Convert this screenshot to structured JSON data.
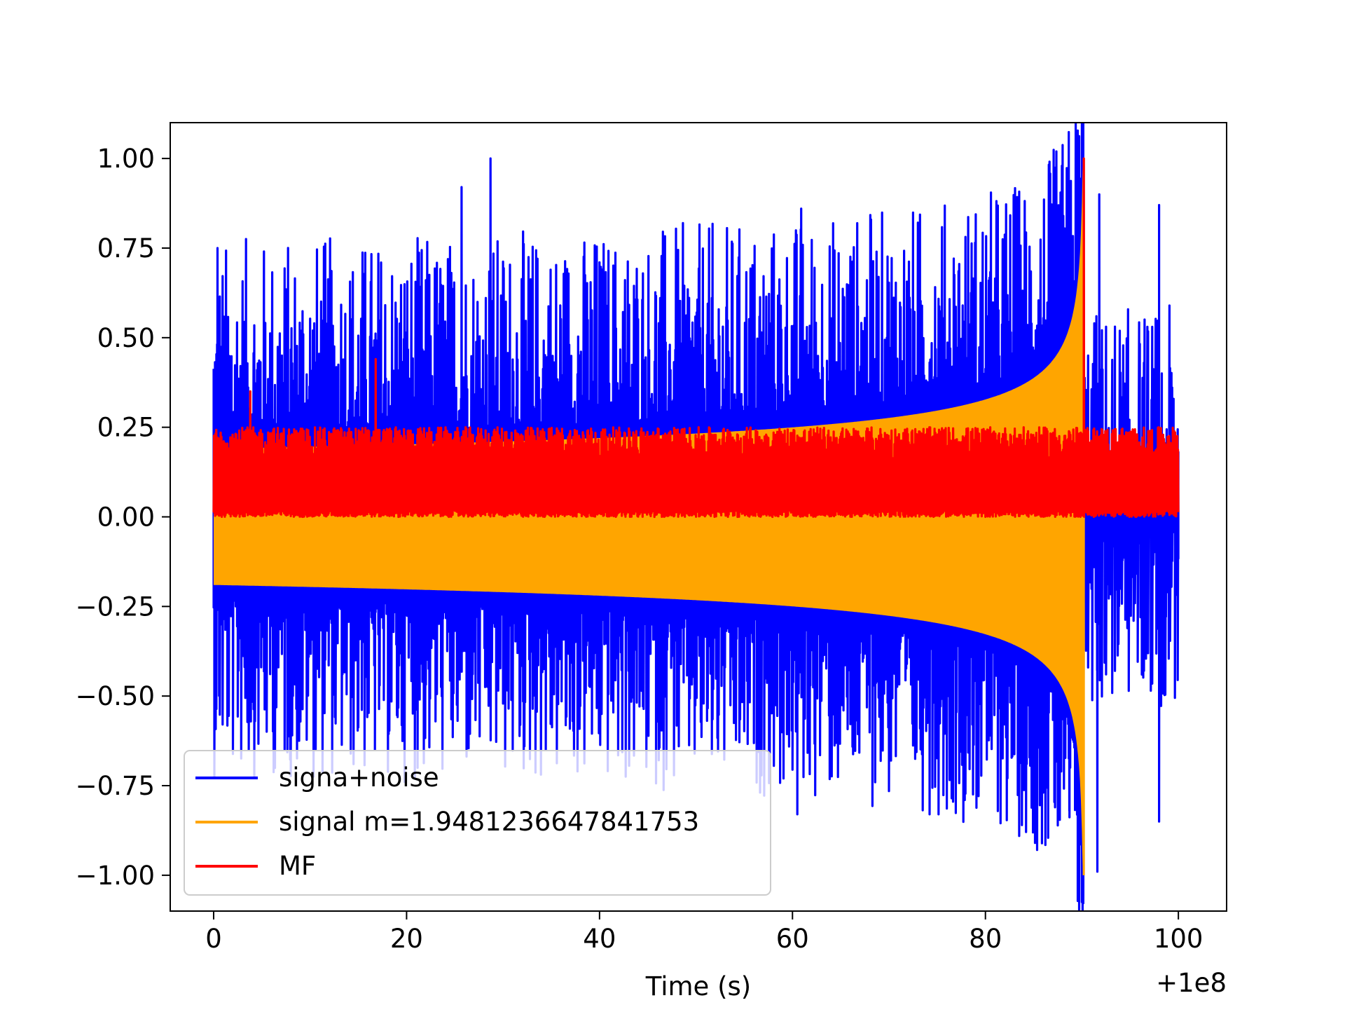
{
  "chart_data": {
    "type": "line",
    "title": "",
    "xlabel": "Time (s)",
    "ylabel": "",
    "x_offset_label": "+1e8",
    "xlim": [
      -4.5,
      105
    ],
    "ylim": [
      -1.1,
      1.1
    ],
    "x_ticks": [
      0,
      20,
      40,
      60,
      80,
      100
    ],
    "x_tick_labels": [
      "0",
      "20",
      "40",
      "60",
      "80",
      "100"
    ],
    "y_ticks": [
      1.0,
      0.75,
      0.5,
      0.25,
      0.0,
      -0.25,
      -0.5,
      -0.75,
      -1.0
    ],
    "y_tick_labels": [
      "1.00",
      "0.75",
      "0.50",
      "0.25",
      "0.00",
      "−0.25",
      "−0.50",
      "−0.75",
      "−1.00"
    ],
    "grid": false,
    "legend_position": "lower-left",
    "merger_time": 90.2,
    "series": [
      {
        "name": "signa+noise",
        "color": "#0000ff",
        "x_range": [
          0,
          100
        ],
        "positive_envelope_typical": 0.45,
        "negative_envelope_typical": -0.55,
        "peaks": [
          {
            "x": 0.4,
            "y": 0.75
          },
          {
            "x": 25.7,
            "y": 0.92
          },
          {
            "x": 28.7,
            "y": 1.0
          },
          {
            "x": 60.9,
            "y": 0.86
          },
          {
            "x": 89.9,
            "y": 0.9
          },
          {
            "x": 91.8,
            "y": 0.9
          },
          {
            "x": 98.0,
            "y": 0.87
          },
          {
            "x": 60.5,
            "y": -0.83
          },
          {
            "x": 88.7,
            "y": -0.82
          },
          {
            "x": 91.6,
            "y": -0.99
          },
          {
            "x": 98.0,
            "y": -0.85
          }
        ]
      },
      {
        "name": "signal m=1.9481236647841753",
        "color": "#ffa500",
        "x_range": [
          0,
          90.2
        ],
        "amplitude_start": 0.19,
        "amplitude_end": 1.0,
        "peak": {
          "x": 90.2,
          "y": 1.0
        }
      },
      {
        "name": "MF",
        "color": "#ff0000",
        "x_range": [
          0,
          100
        ],
        "typical_max": 0.25,
        "min": 0.0,
        "peaks": [
          {
            "x": 3.8,
            "y": 0.35
          },
          {
            "x": 16.8,
            "y": 0.44
          },
          {
            "x": 90.2,
            "y": 1.0
          }
        ]
      }
    ]
  }
}
